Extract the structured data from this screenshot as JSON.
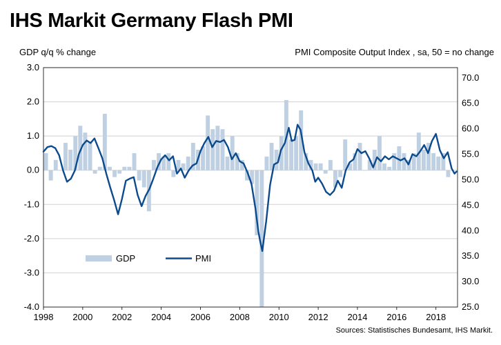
{
  "chart_data": {
    "type": "bar+line",
    "title": "IHS Markit Germany Flash PMI",
    "left_axis_label": "GDP q/q % change",
    "right_axis_label": "PMI Composite  Output Index , sa, 50 = no change",
    "source": "Sources: Statistisches Bundesamt, IHS Markit.",
    "left_ylim": [
      -4.0,
      3.0
    ],
    "right_ylim": [
      25.0,
      72.0
    ],
    "left_ticks": [
      "3.0",
      "2.0",
      "1.0",
      "0.0",
      "-1.0",
      "-2.0",
      "-3.0",
      "-4.0"
    ],
    "left_tick_values": [
      3,
      2,
      1,
      0,
      -1,
      -2,
      -3,
      -4
    ],
    "right_ticks": [
      "70.0",
      "65.0",
      "60.0",
      "55.0",
      "50.0",
      "45.0",
      "40.0",
      "35.0",
      "30.0",
      "25.0"
    ],
    "right_tick_values": [
      70,
      65,
      60,
      55,
      50,
      45,
      40,
      35,
      30,
      25
    ],
    "x_range": [
      1998.0,
      2019.1
    ],
    "x_ticks": [
      "1998",
      "2000",
      "2002",
      "2004",
      "2006",
      "2008",
      "2010",
      "2012",
      "2014",
      "2016",
      "2018"
    ],
    "x_tick_values": [
      1998,
      2000,
      2002,
      2004,
      2006,
      2008,
      2010,
      2012,
      2014,
      2016,
      2018
    ],
    "grid": true,
    "legend": [
      {
        "name": "GDP",
        "kind": "bar",
        "color": "#bfd0e2"
      },
      {
        "name": "PMI",
        "kind": "line",
        "color": "#0b4a8c"
      }
    ],
    "series": [
      {
        "name": "GDP",
        "kind": "bar",
        "axis": "left",
        "start": 1998.0,
        "step": 0.25,
        "values": [
          0.5,
          -0.3,
          0.3,
          0.0,
          0.8,
          0.6,
          1.0,
          1.3,
          1.1,
          0.8,
          -0.1,
          0.1,
          1.65,
          0.1,
          -0.2,
          -0.1,
          0.1,
          0.1,
          0.5,
          -0.3,
          -0.5,
          -1.2,
          0.3,
          0.5,
          0.4,
          0.5,
          -0.2,
          0.3,
          0.2,
          0.4,
          0.8,
          0.6,
          0.7,
          1.6,
          1.2,
          1.3,
          1.2,
          0.4,
          1.0,
          0.5,
          0.3,
          -0.3,
          -0.4,
          -1.9,
          -4.0,
          0.4,
          0.8,
          0.6,
          1.0,
          2.05,
          0.9,
          1.0,
          1.75,
          0.5,
          0.3,
          0.2,
          0.2,
          -0.1,
          0.3,
          -0.5,
          -0.2,
          0.9,
          0.2,
          0.5,
          0.8,
          0.0,
          0.3,
          0.6,
          1.0,
          0.2,
          0.1,
          0.5,
          0.7,
          0.5,
          0.3,
          0.5,
          1.1,
          0.6,
          0.8,
          0.5,
          0.4,
          0.5,
          -0.2,
          0.0
        ]
      },
      {
        "name": "PMI",
        "kind": "line",
        "axis": "right",
        "points": [
          [
            1998.0,
            55.5
          ],
          [
            1998.2,
            56.4
          ],
          [
            1998.4,
            56.6
          ],
          [
            1998.6,
            56.2
          ],
          [
            1998.8,
            54.8
          ],
          [
            1999.0,
            51.8
          ],
          [
            1999.2,
            49.6
          ],
          [
            1999.4,
            50.2
          ],
          [
            1999.6,
            51.8
          ],
          [
            1999.8,
            55.0
          ],
          [
            2000.0,
            56.8
          ],
          [
            2000.2,
            57.7
          ],
          [
            2000.4,
            57.2
          ],
          [
            2000.6,
            58.1
          ],
          [
            2000.8,
            56.2
          ],
          [
            2001.0,
            54.2
          ],
          [
            2001.2,
            51.2
          ],
          [
            2001.4,
            48.5
          ],
          [
            2001.6,
            46.0
          ],
          [
            2001.8,
            43.2
          ],
          [
            2002.0,
            46.2
          ],
          [
            2002.2,
            49.8
          ],
          [
            2002.4,
            50.2
          ],
          [
            2002.6,
            50.5
          ],
          [
            2002.8,
            47.0
          ],
          [
            2003.0,
            44.8
          ],
          [
            2003.2,
            46.8
          ],
          [
            2003.4,
            48.2
          ],
          [
            2003.6,
            50.2
          ],
          [
            2003.8,
            52.4
          ],
          [
            2004.0,
            54.0
          ],
          [
            2004.2,
            54.8
          ],
          [
            2004.4,
            53.8
          ],
          [
            2004.6,
            54.6
          ],
          [
            2004.8,
            51.2
          ],
          [
            2005.0,
            52.2
          ],
          [
            2005.2,
            50.4
          ],
          [
            2005.4,
            51.8
          ],
          [
            2005.6,
            52.8
          ],
          [
            2005.8,
            53.2
          ],
          [
            2006.0,
            55.6
          ],
          [
            2006.2,
            57.2
          ],
          [
            2006.4,
            58.4
          ],
          [
            2006.6,
            56.4
          ],
          [
            2006.8,
            57.6
          ],
          [
            2007.0,
            57.4
          ],
          [
            2007.2,
            57.8
          ],
          [
            2007.4,
            56.4
          ],
          [
            2007.6,
            54.0
          ],
          [
            2007.8,
            55.2
          ],
          [
            2008.0,
            53.6
          ],
          [
            2008.2,
            53.2
          ],
          [
            2008.4,
            51.4
          ],
          [
            2008.6,
            49.2
          ],
          [
            2008.8,
            44.4
          ],
          [
            2008.95,
            39.8
          ],
          [
            2009.05,
            37.8
          ],
          [
            2009.15,
            36.0
          ],
          [
            2009.35,
            41.8
          ],
          [
            2009.55,
            49.0
          ],
          [
            2009.75,
            53.0
          ],
          [
            2009.95,
            53.4
          ],
          [
            2010.1,
            55.8
          ],
          [
            2010.3,
            57.2
          ],
          [
            2010.5,
            60.2
          ],
          [
            2010.65,
            57.6
          ],
          [
            2010.8,
            57.8
          ],
          [
            2010.95,
            60.8
          ],
          [
            2011.1,
            59.8
          ],
          [
            2011.3,
            55.4
          ],
          [
            2011.5,
            53.2
          ],
          [
            2011.7,
            51.8
          ],
          [
            2011.85,
            49.6
          ],
          [
            2012.0,
            50.4
          ],
          [
            2012.2,
            49.2
          ],
          [
            2012.4,
            47.6
          ],
          [
            2012.6,
            47.0
          ],
          [
            2012.8,
            47.8
          ],
          [
            2013.0,
            49.8
          ],
          [
            2013.2,
            48.4
          ],
          [
            2013.4,
            51.8
          ],
          [
            2013.6,
            53.4
          ],
          [
            2013.8,
            54.0
          ],
          [
            2014.0,
            56.0
          ],
          [
            2014.2,
            55.2
          ],
          [
            2014.4,
            55.6
          ],
          [
            2014.6,
            54.2
          ],
          [
            2014.8,
            52.4
          ],
          [
            2015.0,
            54.4
          ],
          [
            2015.2,
            53.6
          ],
          [
            2015.4,
            54.6
          ],
          [
            2015.6,
            54.0
          ],
          [
            2015.8,
            54.6
          ],
          [
            2016.0,
            54.2
          ],
          [
            2016.2,
            53.8
          ],
          [
            2016.4,
            54.2
          ],
          [
            2016.6,
            53.0
          ],
          [
            2016.8,
            55.0
          ],
          [
            2017.0,
            54.6
          ],
          [
            2017.2,
            55.6
          ],
          [
            2017.4,
            56.8
          ],
          [
            2017.6,
            55.2
          ],
          [
            2017.8,
            57.6
          ],
          [
            2018.0,
            59.0
          ],
          [
            2018.2,
            55.8
          ],
          [
            2018.4,
            54.2
          ],
          [
            2018.6,
            55.4
          ],
          [
            2018.8,
            52.2
          ],
          [
            2018.95,
            51.2
          ],
          [
            2019.05,
            51.6
          ]
        ]
      }
    ]
  }
}
